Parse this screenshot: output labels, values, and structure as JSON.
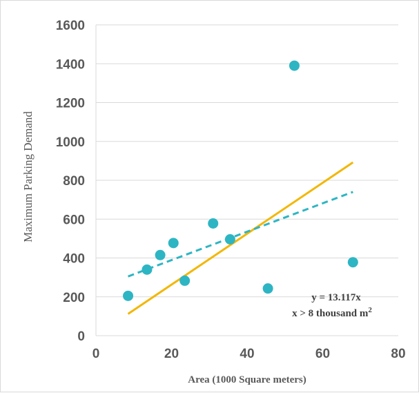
{
  "chart_data": {
    "type": "scatter",
    "title": "",
    "xlabel": "Area (1000 Square meters)",
    "ylabel": "Maximum Parking   Demand",
    "xlim": [
      0,
      80
    ],
    "ylim": [
      0,
      1600
    ],
    "xticks": [
      0,
      20,
      40,
      60,
      80
    ],
    "yticks": [
      0,
      200,
      400,
      600,
      800,
      1000,
      1200,
      1400,
      1600
    ],
    "grid": "horizontal",
    "points": [
      {
        "x": 8.5,
        "y": 205
      },
      {
        "x": 13.5,
        "y": 340
      },
      {
        "x": 17,
        "y": 415
      },
      {
        "x": 20.5,
        "y": 477
      },
      {
        "x": 23.5,
        "y": 283
      },
      {
        "x": 31,
        "y": 578
      },
      {
        "x": 35.5,
        "y": 496
      },
      {
        "x": 45.5,
        "y": 243
      },
      {
        "x": 52.5,
        "y": 1390
      },
      {
        "x": 68,
        "y": 378
      }
    ],
    "trendline": {
      "x": [
        8.5,
        68
      ],
      "y": [
        305,
        740
      ],
      "style": "dashed",
      "color": "#2eb5c3"
    },
    "model_line": {
      "x": [
        8.5,
        68
      ],
      "y": [
        112,
        892
      ],
      "style": "solid",
      "color": "#f2b705"
    },
    "annotation": {
      "line1": "y = 13.117x",
      "line2_prefix": "x > 8 thousand m",
      "line2_sup": "2"
    },
    "colors": {
      "points": "#2eb5c3",
      "model": "#f2b705",
      "grid": "#d9d9d9",
      "text": "#595959"
    }
  }
}
